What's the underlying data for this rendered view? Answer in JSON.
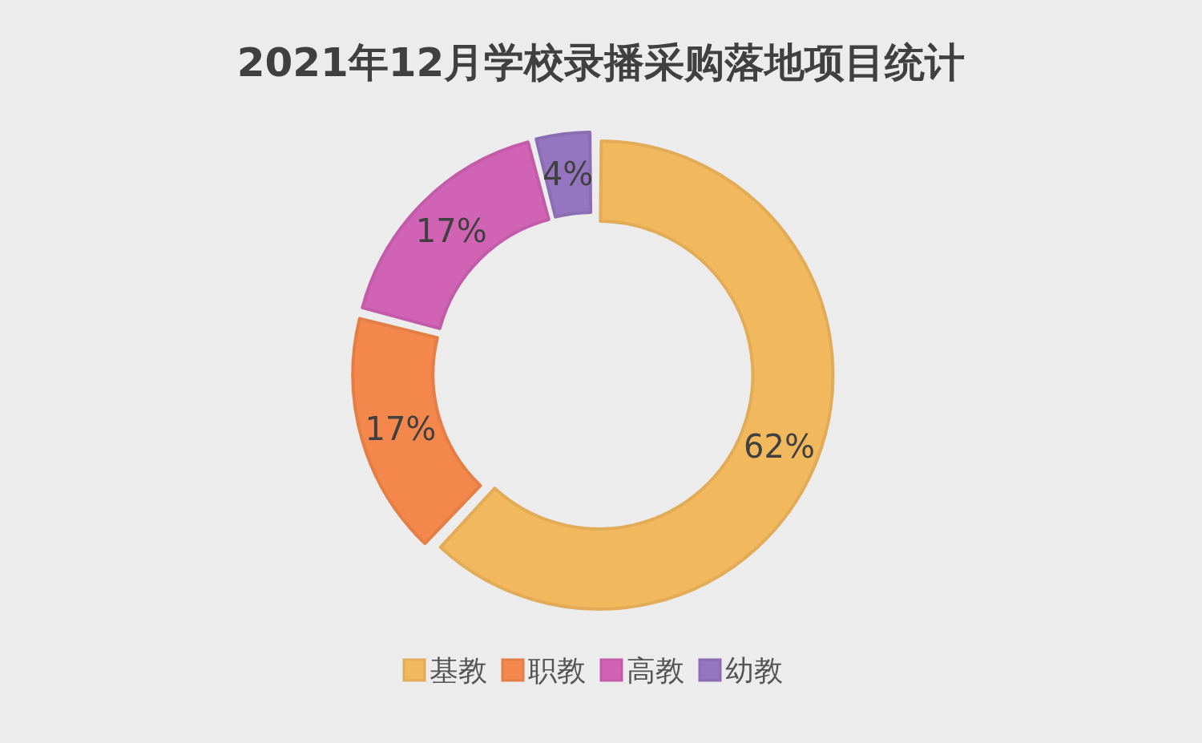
{
  "chart_data": {
    "type": "donut",
    "title": "2021年12月学校录播采购落地项目统计",
    "categories": [
      "基教",
      "职教",
      "高教",
      "幼教"
    ],
    "values": [
      62,
      17,
      17,
      4
    ],
    "colors": [
      "#f2b85e",
      "#f4874b",
      "#d163b5",
      "#9575c0"
    ],
    "value_labels": [
      "62%",
      "17%",
      "17%",
      "4%"
    ],
    "legend": "bottom"
  }
}
